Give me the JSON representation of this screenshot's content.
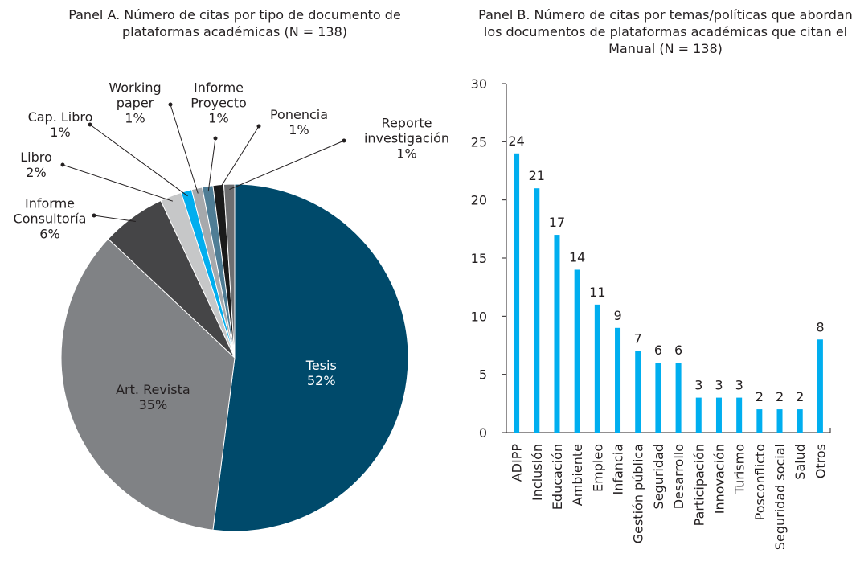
{
  "chart_data": [
    {
      "type": "pie",
      "title": "Panel A. Número de citas por tipo de documento de plataformas académicas (N = 138)",
      "categories": [
        "Tesis",
        "Art. Revista",
        "Informe Consultoría",
        "Libro",
        "Cap. Libro",
        "Working paper",
        "Informe Proyecto",
        "Ponencia",
        "Reporte investigación"
      ],
      "values": [
        52,
        35,
        6,
        2,
        1,
        1,
        1,
        1,
        1
      ],
      "value_labels": [
        "52%",
        "35%",
        "6%",
        "2%",
        "1%",
        "1%",
        "1%",
        "1%",
        "1%"
      ],
      "colors": [
        "#004a6b",
        "#808285",
        "#454547",
        "#c6c7c8",
        "#00aeef",
        "#a7a9ac",
        "#4f7d95",
        "#1a1a1a",
        "#6d6e70"
      ]
    },
    {
      "type": "bar",
      "title": "Panel B. Número de citas por temas/políticas que abordan los documentos de plataformas académicas que citan el Manual (N = 138)",
      "categories": [
        "ADIPP",
        "Inclusión",
        "Educación",
        "Ambiente",
        "Empleo",
        "Infancia",
        "Gestión pública",
        "Seguridad",
        "Desarrollo",
        "Participación",
        "Innovación",
        "Turismo",
        "Posconflicto",
        "Seguridad social",
        "Salud",
        "Otros"
      ],
      "values": [
        24,
        21,
        17,
        14,
        11,
        9,
        7,
        6,
        6,
        3,
        3,
        3,
        2,
        2,
        2,
        8
      ],
      "color": "#00aeef",
      "ylim": [
        0,
        30
      ],
      "yticks": [
        0,
        5,
        10,
        15,
        20,
        25,
        30
      ]
    }
  ]
}
